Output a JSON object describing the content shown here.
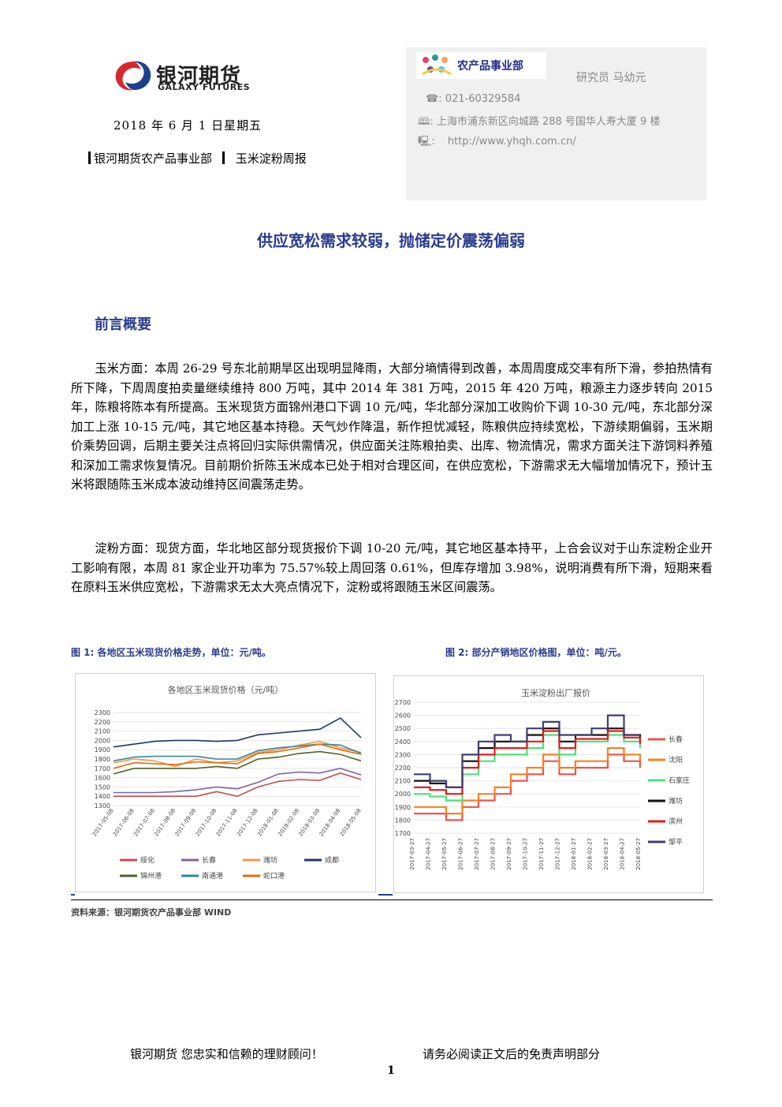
{
  "header": {
    "logo_cn": "银河期货",
    "logo_en": "GALAXY FUTURES",
    "date": "2018 年 6 月 1 日星期五",
    "dept": "银河期货农产品事业部",
    "report": "玉米淀粉周报",
    "dept_logo": "农产品事业部",
    "researcher": "研究员    马幼元",
    "phone": "021-60329584",
    "address": "上海市浦东新区向城路 288 号国华人寿大厦 9 楼",
    "website": "http://www.yhqh.com.cn/"
  },
  "title": "供应宽松需求较弱，抛储定价震荡偏弱",
  "section": "前言概要",
  "paragraphs": [
    "玉米方面：本周 26-29 号东北前期旱区出现明显降雨，大部分墒情得到改善，本周周度成交率有所下滑，参拍热情有所下降，下周周度拍卖量继续维持 800 万吨，其中 2014 年 381 万吨，2015 年 420 万吨，粮源主力逐步转向 2015 年，陈粮将陈本有所提高。玉米现货方面锦州港口下调 10 元/吨，华北部分深加工收购价下调 10-30 元/吨，东北部分深加工上涨 10-15 元/吨，其它地区基本持稳。天气炒作降温，新作担忧减轻，陈粮供应持续宽松，下游续期偏弱，玉米期价乘势回调，后期主要关注点将回归实际供需情况，供应面关注陈粮拍卖、出库、物流情况，需求方面关注下游饲料养殖和深加工需求恢复情况。目前期价折陈玉米成本已处于相对合理区间，在供应宽松，下游需求无大幅增加情况下，预计玉米将跟随陈玉米成本波动维持区间震荡走势。",
    "淀粉方面：现货方面，华北地区部分现货报价下调 10-20 元/吨，其它地区基本持平，上合会议对于山东淀粉企业开工影响有限，本周 81 家企业开功率为 75.57%较上周回落 0.61%，但库存增加 3.98%，说明消费有所下滑，短期来看在原料玉米供应宽松，下游需求无太大亮点情况下，淀粉或将跟随玉米区间震荡。"
  ],
  "figure1_caption": "图 1:  各地区玉米现货价格走势，单位：元/吨。",
  "figure2_caption": "图 2:  部分产销地区价格图，单位：吨/元。",
  "source": "资料来源：银河期货农产品事业部  WIND",
  "footer_left": "银河期货  您忠实和信赖的理财顾问！",
  "footer_right": "请务必阅读正文后的免责声明部分",
  "page_number": "1",
  "chart_data": [
    {
      "type": "line",
      "title": "各地区玉米现货价格（元/吨）",
      "ylim": [
        1300,
        2300
      ],
      "yticks": [
        "1300",
        "1400",
        "1500",
        "1600",
        "1700",
        "1800",
        "1900",
        "2000",
        "2100",
        "2200",
        "2300"
      ],
      "x": [
        "2017-05-08",
        "2017-06-08",
        "2017-07-08",
        "2017-08-08",
        "2017-09-08",
        "2017-10-08",
        "2017-11-08",
        "2017-12-08",
        "2018-01-08",
        "2018-02-08",
        "2018-03-08",
        "2018-04-08",
        "2018-05-08"
      ],
      "legend_position": "bottom",
      "series": [
        {
          "name": "绥化",
          "color": "#c0504d",
          "values": [
            1400,
            1400,
            1400,
            1400,
            1400,
            1450,
            1400,
            1500,
            1560,
            1580,
            1570,
            1650,
            1580
          ]
        },
        {
          "name": "长春",
          "color": "#8064a2",
          "values": [
            1440,
            1440,
            1440,
            1450,
            1470,
            1500,
            1480,
            1550,
            1640,
            1660,
            1650,
            1700,
            1630
          ]
        },
        {
          "name": "潍坊",
          "color": "#f79646",
          "values": [
            1760,
            1800,
            1780,
            1720,
            1800,
            1760,
            1780,
            1870,
            1900,
            1950,
            1990,
            1920,
            1870
          ]
        },
        {
          "name": "成都",
          "color": "#1f3864",
          "values": [
            1930,
            1960,
            1990,
            2000,
            2000,
            1990,
            2000,
            2060,
            2080,
            2100,
            2120,
            2240,
            2030
          ]
        },
        {
          "name": "锦州港",
          "color": "#4f6228",
          "values": [
            1640,
            1700,
            1700,
            1700,
            1700,
            1720,
            1700,
            1800,
            1820,
            1860,
            1880,
            1850,
            1780
          ]
        },
        {
          "name": "南通港",
          "color": "#31859c",
          "values": [
            1780,
            1820,
            1830,
            1830,
            1830,
            1800,
            1800,
            1890,
            1920,
            1940,
            1960,
            1950,
            1860
          ]
        },
        {
          "name": "蛇口港",
          "color": "#e36c09",
          "values": [
            1700,
            1760,
            1750,
            1740,
            1770,
            1760,
            1750,
            1860,
            1880,
            1920,
            1960,
            1900,
            1850
          ]
        }
      ]
    },
    {
      "type": "line",
      "title": "玉米淀粉出厂报价",
      "ylim": [
        1700,
        2700
      ],
      "yticks": [
        "1700",
        "1800",
        "1900",
        "2000",
        "2100",
        "2200",
        "2300",
        "2400",
        "2500",
        "2600",
        "2700"
      ],
      "x": [
        "2017-03-27",
        "2017-04-27",
        "2017-05-27",
        "2017-06-27",
        "2017-07-27",
        "2017-08-27",
        "2017-09-27",
        "2017-10-27",
        "2017-11-27",
        "2017-12-27",
        "2018-01-27",
        "2018-02-27",
        "2018-03-27",
        "2018-04-27",
        "2018-05-27"
      ],
      "legend_position": "right",
      "series": [
        {
          "name": "长春",
          "color": "#e8554e",
          "values": [
            1850,
            1850,
            1800,
            1900,
            1950,
            2000,
            2100,
            2150,
            2250,
            2150,
            2200,
            2200,
            2300,
            2250,
            2200
          ]
        },
        {
          "name": "沈阳",
          "color": "#f58220",
          "values": [
            1900,
            1900,
            1850,
            1950,
            2000,
            2050,
            2150,
            2200,
            2300,
            2200,
            2250,
            2250,
            2350,
            2300,
            2250
          ]
        },
        {
          "name": "石家庄",
          "color": "#4ce07a",
          "values": [
            2000,
            1980,
            1950,
            2150,
            2250,
            2300,
            2300,
            2350,
            2450,
            2300,
            2400,
            2400,
            2450,
            2400,
            2350
          ]
        },
        {
          "name": "潍坊",
          "color": "#111111",
          "values": [
            2100,
            2080,
            2050,
            2250,
            2350,
            2400,
            2400,
            2450,
            2500,
            2400,
            2450,
            2450,
            2500,
            2450,
            2400
          ]
        },
        {
          "name": "滨州",
          "color": "#e41a1c",
          "values": [
            2050,
            2030,
            2000,
            2200,
            2300,
            2350,
            2350,
            2400,
            2480,
            2350,
            2420,
            2420,
            2480,
            2430,
            2380
          ]
        },
        {
          "name": "邹平",
          "color": "#3f3f6f",
          "values": [
            2150,
            2100,
            2050,
            2300,
            2400,
            2450,
            2400,
            2500,
            2550,
            2450,
            2450,
            2500,
            2600,
            2450,
            2450
          ]
        }
      ]
    }
  ]
}
